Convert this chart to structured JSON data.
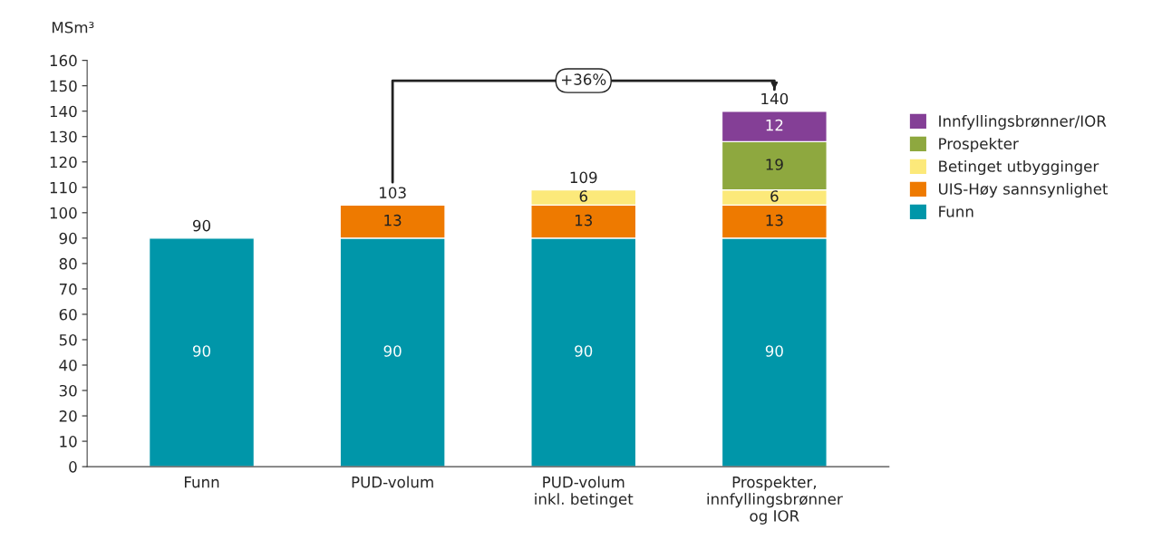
{
  "chart_data": {
    "type": "bar",
    "stacked": true,
    "ylabel": "MSm³",
    "categories": [
      "Funn",
      "PUD-volum",
      "PUD-volum\ninkl. betinget",
      "Prospekter,\ninnfyllingsbrønner\nog IOR"
    ],
    "series": [
      {
        "name": "Funn",
        "color": "#0096a9",
        "values": [
          90,
          90,
          90,
          90
        ]
      },
      {
        "name": "UIS-Høy sannsynlighet",
        "color": "#ee7a00",
        "values": [
          null,
          13,
          13,
          13
        ]
      },
      {
        "name": "Betinget utbygginger",
        "color": "#fce97a",
        "values": [
          null,
          null,
          6,
          6
        ]
      },
      {
        "name": "Prospekter",
        "color": "#8ea83f",
        "values": [
          null,
          null,
          null,
          19
        ]
      },
      {
        "name": "Innfyllingsbrønner/IOR",
        "color": "#843f96",
        "values": [
          null,
          null,
          null,
          12
        ]
      }
    ],
    "totals": [
      "90",
      "103",
      "109",
      "140"
    ],
    "data_labels": true,
    "annotations": [
      "+36%"
    ],
    "ylim": [
      0,
      160
    ],
    "yticks": [
      0,
      10,
      20,
      30,
      40,
      50,
      60,
      70,
      80,
      90,
      100,
      110,
      120,
      130,
      140,
      150,
      160
    ],
    "grid": false,
    "legend": "right"
  }
}
